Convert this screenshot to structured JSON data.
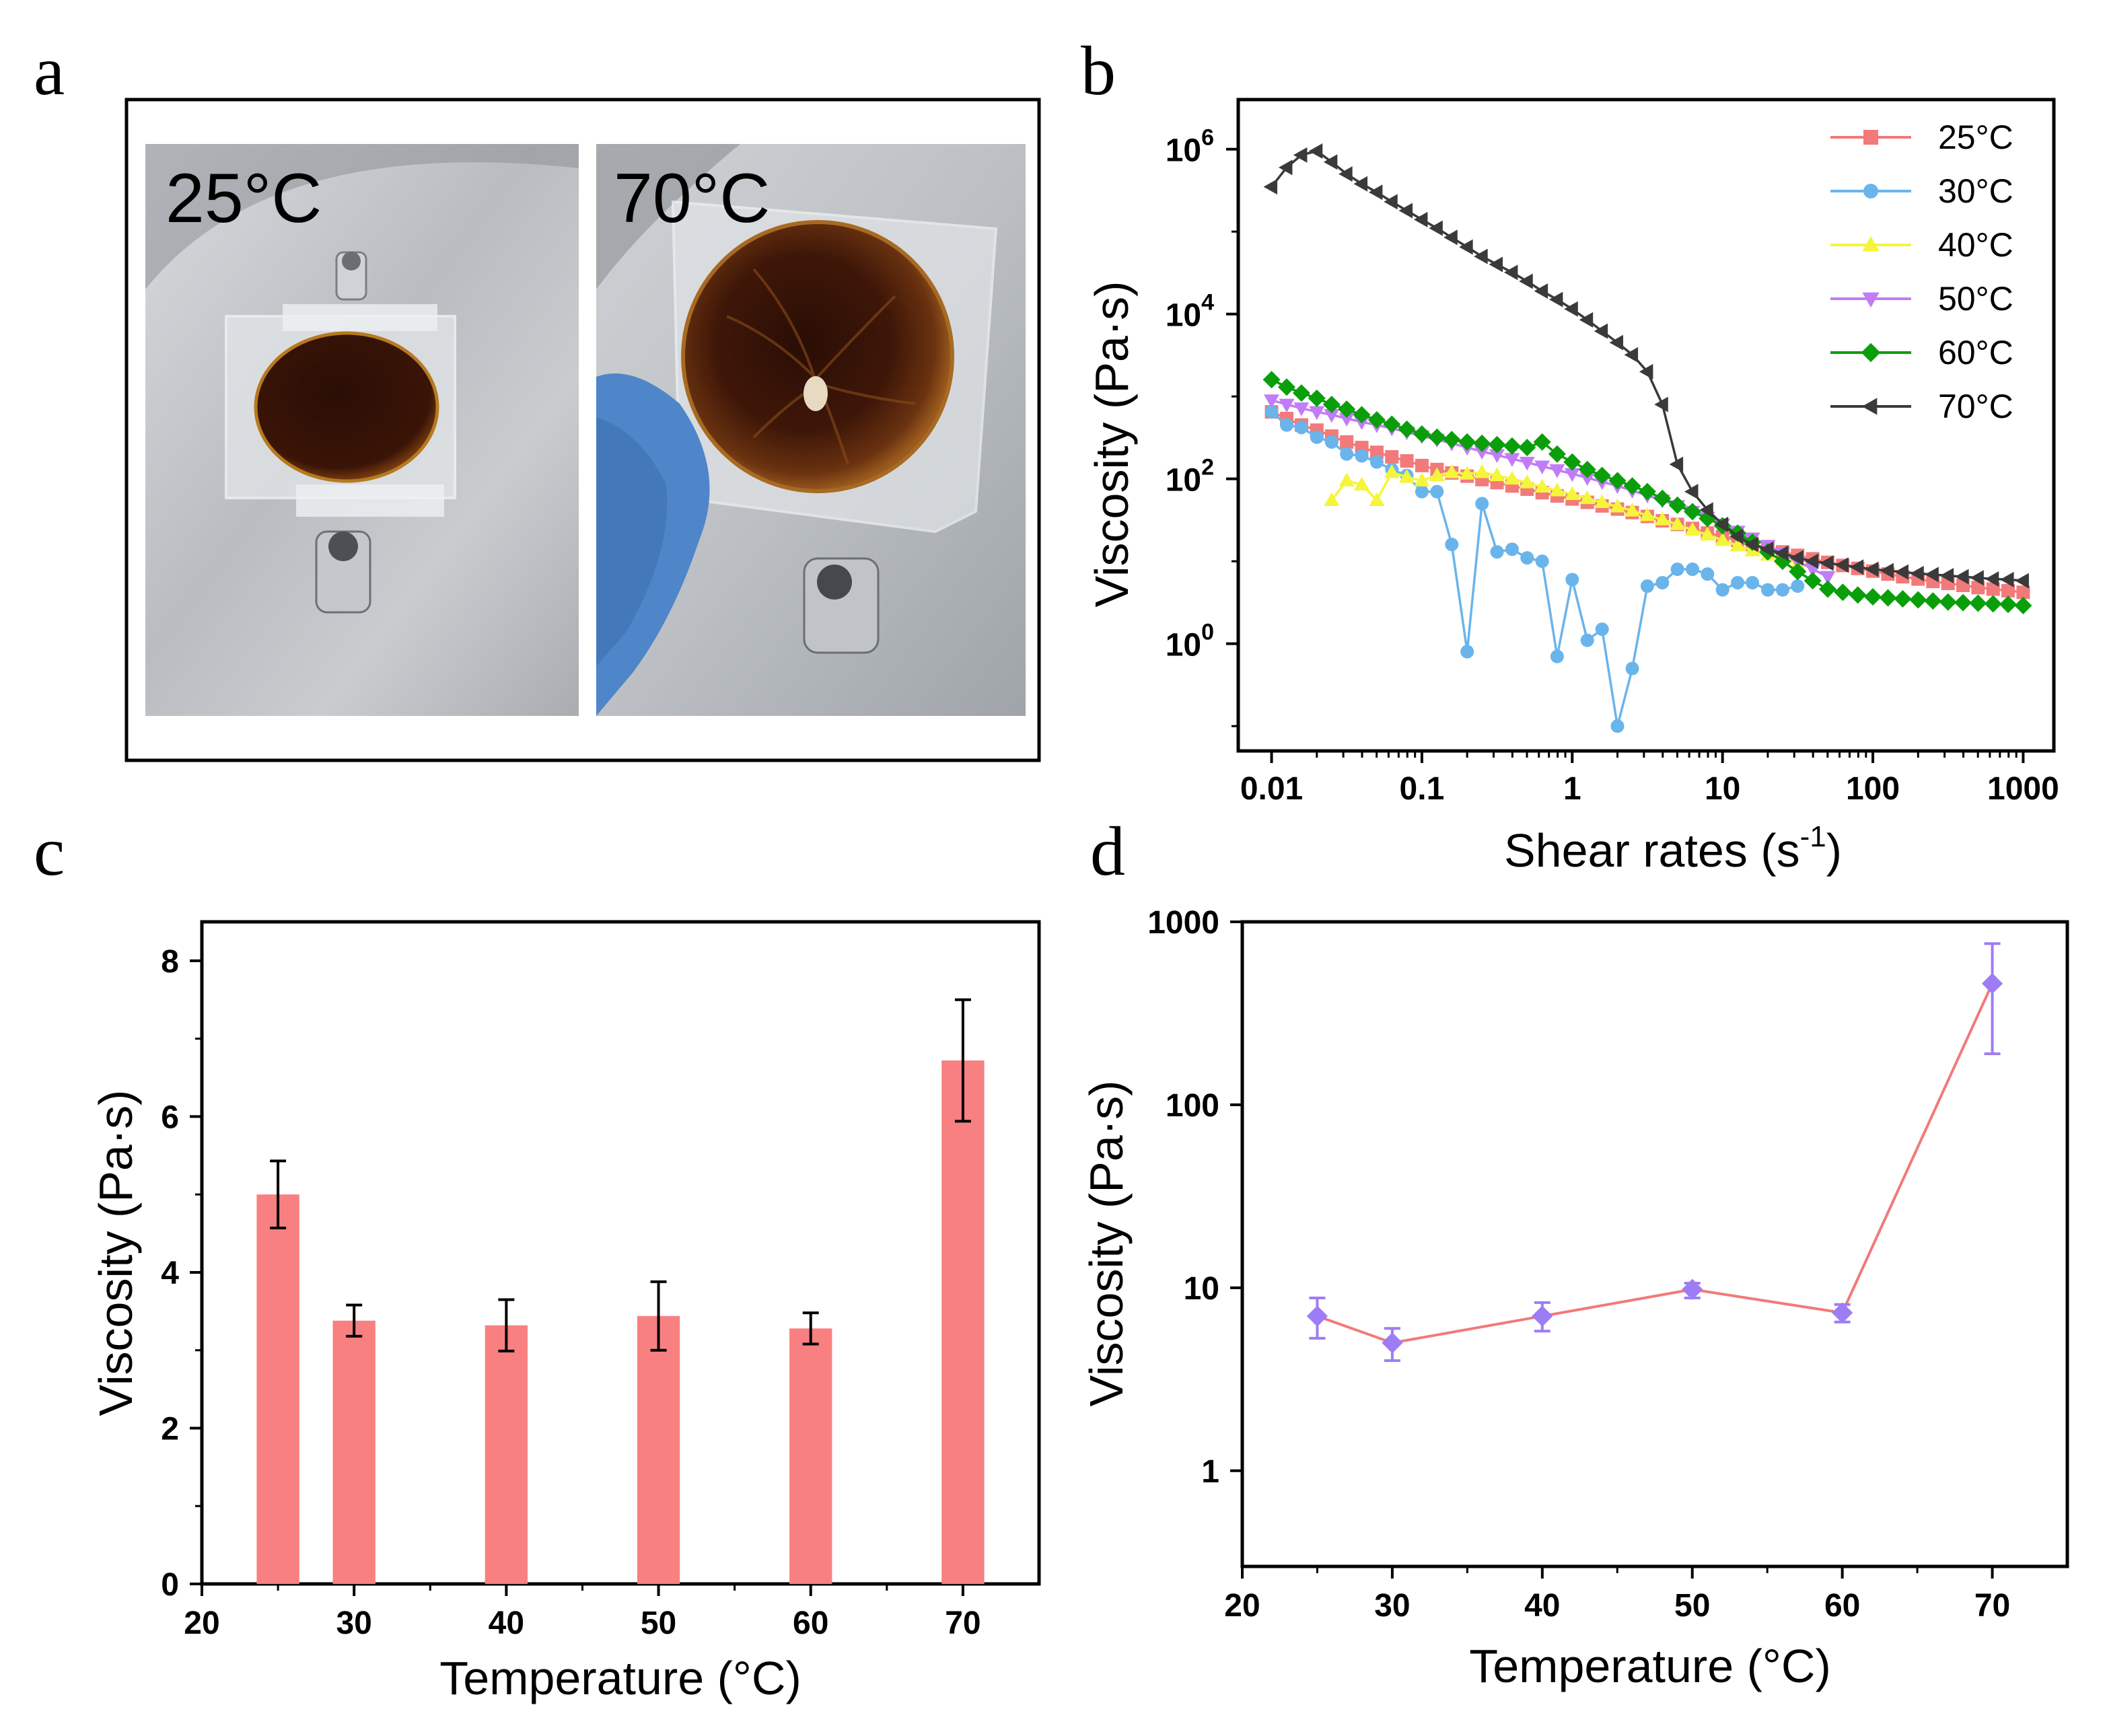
{
  "panels": {
    "a": {
      "letter": "a",
      "photos": [
        {
          "label": "25°C"
        },
        {
          "label": "70°C"
        }
      ]
    },
    "b": {
      "letter": "b"
    },
    "c": {
      "letter": "c"
    },
    "d": {
      "letter": "d"
    }
  },
  "colors": {
    "series_25": "#f27a7a",
    "series_30": "#6ab4ec",
    "series_40": "#f5f53a",
    "series_50": "#c17cf7",
    "series_60": "#0b9e0b",
    "series_70": "#3a3a3a",
    "bar": "#f88080",
    "line_d": "#f27a7a",
    "marker_d": "#9e7cf5"
  },
  "chart_data": [
    {
      "id": "b",
      "type": "line",
      "scale": "log-log",
      "xlabel": "Shear rates (s",
      "xlabel_sup": "-1",
      "xlabel_end": ")",
      "ylabel": "Viscosity (Pa·s)",
      "xlim": [
        0.006,
        1600
      ],
      "ylim": [
        0.05,
        4000000
      ],
      "x_ticks": [
        0.01,
        0.1,
        1,
        10,
        100,
        1000
      ],
      "x_tick_labels": [
        "0.01",
        "0.1",
        "1",
        "10",
        "100",
        "1000"
      ],
      "y_ticks": [
        1,
        100,
        10000,
        1000000
      ],
      "y_tick_labels": [
        {
          "base": "10",
          "exp": "0"
        },
        {
          "base": "10",
          "exp": "2"
        },
        {
          "base": "10",
          "exp": "4"
        },
        {
          "base": "10",
          "exp": "6"
        }
      ],
      "legend_position": "top-right",
      "series": [
        {
          "name": "25°C",
          "color_key": "series_25",
          "marker": "square",
          "x": [
            0.01,
            0.0126,
            0.0158,
            0.02,
            0.0251,
            0.0316,
            0.0398,
            0.0501,
            0.0631,
            0.0794,
            0.1,
            0.126,
            0.158,
            0.2,
            0.251,
            0.316,
            0.398,
            0.501,
            0.631,
            0.794,
            1,
            1.26,
            1.58,
            2,
            2.51,
            3.16,
            3.98,
            5.01,
            6.31,
            7.94,
            10,
            12.6,
            15.8,
            20,
            25.1,
            31.6,
            39.8,
            50.1,
            63.1,
            79.4,
            100,
            126,
            158,
            200,
            251,
            316,
            398,
            501,
            631,
            794,
            1000
          ],
          "y": [
            650,
            540,
            450,
            390,
            330,
            280,
            240,
            210,
            185,
            165,
            145,
            130,
            118,
            108,
            98,
            90,
            82,
            75,
            68,
            62,
            57,
            52,
            47,
            43,
            39,
            35,
            31,
            28,
            25,
            22,
            20,
            18,
            16,
            14.5,
            13,
            11.8,
            10.7,
            9.7,
            8.9,
            8.2,
            7.6,
            7,
            6.5,
            6.1,
            5.7,
            5.4,
            5.1,
            4.8,
            4.6,
            4.4,
            4.2
          ]
        },
        {
          "name": "30°C",
          "color_key": "series_30",
          "marker": "circle",
          "x": [
            0.01,
            0.0126,
            0.0158,
            0.02,
            0.0251,
            0.0316,
            0.0398,
            0.0501,
            0.0631,
            0.0794,
            0.1,
            0.126,
            0.158,
            0.2,
            0.251,
            0.316,
            0.398,
            0.501,
            0.631,
            0.794,
            1,
            1.26,
            1.58,
            2,
            2.51,
            3.16,
            3.98,
            5.01,
            6.31,
            7.94,
            10,
            12.6,
            15.8,
            20,
            25.1,
            31.6
          ],
          "y": [
            650,
            450,
            420,
            320,
            280,
            200,
            190,
            160,
            130,
            110,
            70,
            70,
            16,
            0.8,
            50,
            13,
            14,
            11,
            10,
            0.7,
            6,
            1.1,
            1.5,
            0.1,
            0.5,
            5,
            5.5,
            8,
            8,
            7,
            4.5,
            5.5,
            5.5,
            4.5,
            4.5,
            5
          ]
        },
        {
          "name": "40°C",
          "color_key": "series_40",
          "marker": "triangle-up",
          "x": [
            0.0251,
            0.0316,
            0.0398,
            0.0501,
            0.0631,
            0.0794,
            0.1,
            0.126,
            0.158,
            0.2,
            0.251,
            0.316,
            0.398,
            0.501,
            0.631,
            0.794,
            1,
            1.26,
            1.58,
            2,
            2.51,
            3.16,
            3.98,
            5.01,
            6.31,
            7.94,
            10,
            12.6,
            15.8,
            20,
            25.1,
            31.6
          ],
          "y": [
            55,
            95,
            85,
            55,
            120,
            105,
            95,
            110,
            120,
            115,
            120,
            110,
            100,
            90,
            80,
            72,
            65,
            58,
            52,
            46,
            41,
            36,
            32,
            28,
            24,
            21,
            18,
            15.5,
            13.5,
            12,
            10.5,
            9.5
          ]
        },
        {
          "name": "50°C",
          "color_key": "series_50",
          "marker": "triangle-down",
          "x": [
            0.01,
            0.0126,
            0.0158,
            0.02,
            0.0251,
            0.0316,
            0.0398,
            0.0501,
            0.0631,
            0.0794,
            0.1,
            0.126,
            0.158,
            0.2,
            0.251,
            0.316,
            0.398,
            0.501,
            0.631,
            0.794,
            1,
            1.26,
            1.58,
            2,
            2.51,
            3.16,
            3.98,
            5.01,
            6.31,
            7.94,
            10,
            12.6,
            15.8,
            20,
            25.1,
            31.6,
            39.8,
            50.1
          ],
          "y": [
            900,
            800,
            720,
            650,
            600,
            540,
            490,
            450,
            410,
            370,
            330,
            300,
            270,
            240,
            215,
            195,
            175,
            158,
            142,
            128,
            115,
            103,
            92,
            82,
            72,
            63,
            55,
            47,
            40,
            34,
            28,
            23,
            19,
            15.5,
            12.5,
            10,
            8,
            6.5
          ]
        },
        {
          "name": "60°C",
          "color_key": "series_60",
          "marker": "diamond",
          "x": [
            0.01,
            0.0126,
            0.0158,
            0.02,
            0.0251,
            0.0316,
            0.0398,
            0.0501,
            0.0631,
            0.0794,
            0.1,
            0.126,
            0.158,
            0.2,
            0.251,
            0.316,
            0.398,
            0.501,
            0.631,
            0.794,
            1,
            1.26,
            1.58,
            2,
            2.51,
            3.16,
            3.98,
            5.01,
            6.31,
            7.94,
            10,
            12.6,
            15.8,
            20,
            25.1,
            31.6,
            39.8,
            50.1,
            63.1,
            79.4,
            100,
            126,
            158,
            200,
            251,
            316,
            398,
            501,
            631,
            794,
            1000
          ],
          "y": [
            1600,
            1300,
            1100,
            950,
            800,
            700,
            600,
            520,
            460,
            400,
            350,
            320,
            300,
            280,
            270,
            260,
            250,
            240,
            280,
            200,
            160,
            130,
            110,
            95,
            82,
            70,
            58,
            48,
            40,
            33,
            27,
            22,
            17,
            13,
            10,
            7.5,
            5.8,
            4.6,
            4.2,
            3.9,
            3.7,
            3.6,
            3.5,
            3.4,
            3.3,
            3.2,
            3.15,
            3.1,
            3.05,
            3,
            2.9
          ]
        },
        {
          "name": "70°C",
          "color_key": "series_70",
          "marker": "triangle-left",
          "x": [
            0.01,
            0.0126,
            0.0158,
            0.02,
            0.0251,
            0.0316,
            0.0398,
            0.0501,
            0.0631,
            0.0794,
            0.1,
            0.126,
            0.158,
            0.2,
            0.251,
            0.316,
            0.398,
            0.501,
            0.631,
            0.794,
            1,
            1.26,
            1.58,
            2,
            2.51,
            3.16,
            3.98,
            5.01,
            6.31,
            7.94,
            10,
            12.6,
            15.8,
            20,
            25.1,
            31.6,
            39.8,
            50.1,
            63.1,
            79.4,
            100,
            126,
            158,
            200,
            251,
            316,
            398,
            501,
            631,
            794,
            1000
          ],
          "y": [
            350000,
            600000,
            850000,
            950000,
            700000,
            500000,
            380000,
            300000,
            230000,
            180000,
            140000,
            110000,
            85000,
            65000,
            50000,
            40000,
            32000,
            25000,
            19000,
            15000,
            11500,
            8500,
            6200,
            4500,
            3200,
            2000,
            800,
            150,
            70,
            42,
            28,
            20,
            16,
            14,
            12.5,
            11,
            10,
            9.5,
            9,
            8.5,
            8,
            7.7,
            7.4,
            7.1,
            6.9,
            6.7,
            6.5,
            6.3,
            6.1,
            6,
            5.8
          ]
        }
      ]
    },
    {
      "id": "c",
      "type": "bar",
      "xlabel": "Temperature (°C)",
      "ylabel": "Viscosity (Pa·s)",
      "xlim": [
        20,
        75
      ],
      "ylim": [
        0,
        8.5
      ],
      "x_ticks": [
        20,
        30,
        40,
        50,
        60,
        70
      ],
      "x_tick_labels": [
        "20",
        "30",
        "40",
        "50",
        "60",
        "70"
      ],
      "y_ticks": [
        0,
        2,
        4,
        6,
        8
      ],
      "y_tick_labels": [
        "0",
        "2",
        "4",
        "6",
        "8"
      ],
      "bar_width": 2.8,
      "x": [
        25,
        30,
        40,
        50,
        60,
        70
      ],
      "values": [
        5.0,
        3.38,
        3.32,
        3.44,
        3.28,
        6.72
      ],
      "errors": [
        0.43,
        0.2,
        0.33,
        0.44,
        0.2,
        0.78
      ]
    },
    {
      "id": "d",
      "type": "line",
      "scale": "log-y",
      "xlabel": "Temperature (°C)",
      "ylabel": "Viscosity (Pa·s)",
      "xlim": [
        20,
        75
      ],
      "ylim": [
        0.3,
        1000
      ],
      "x_ticks": [
        20,
        30,
        40,
        50,
        60,
        70
      ],
      "x_tick_labels": [
        "20",
        "30",
        "40",
        "50",
        "60",
        "70"
      ],
      "y_ticks": [
        1,
        10,
        100,
        1000
      ],
      "y_tick_labels": [
        "1",
        "10",
        "100",
        "1000"
      ],
      "x": [
        25,
        30,
        40,
        50,
        60,
        70
      ],
      "values": [
        7.0,
        5.0,
        7.0,
        9.8,
        7.3,
        460
      ],
      "err_low": [
        5.3,
        4.0,
        5.8,
        8.8,
        6.5,
        190
      ],
      "err_high": [
        8.8,
        6.0,
        8.3,
        10.6,
        8.1,
        760
      ]
    }
  ]
}
